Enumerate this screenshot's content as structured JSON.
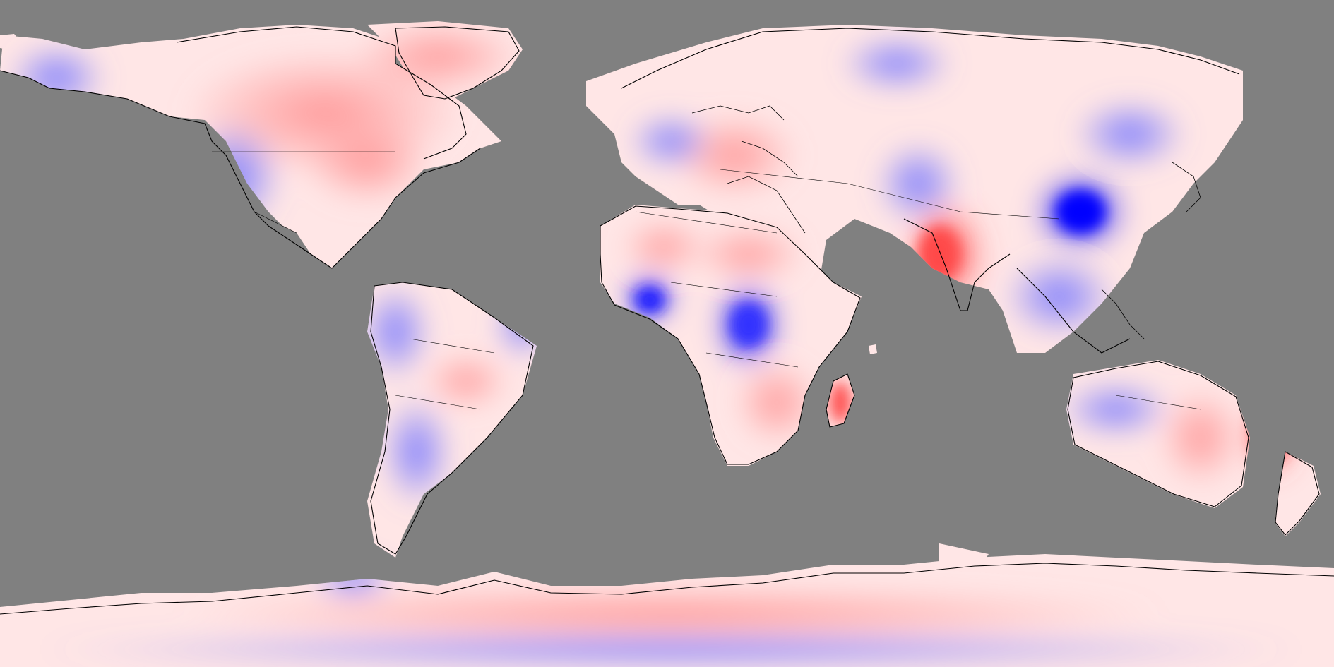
{
  "map": {
    "projection": "equirectangular",
    "background_color": "#808080",
    "no_data_color": "#808080",
    "color_scale": {
      "negative": "#0000ff",
      "neutral": "#ffffff",
      "positive": "#ff3b3b"
    },
    "coastline_color": "#000000",
    "legend": null,
    "title": ""
  }
}
